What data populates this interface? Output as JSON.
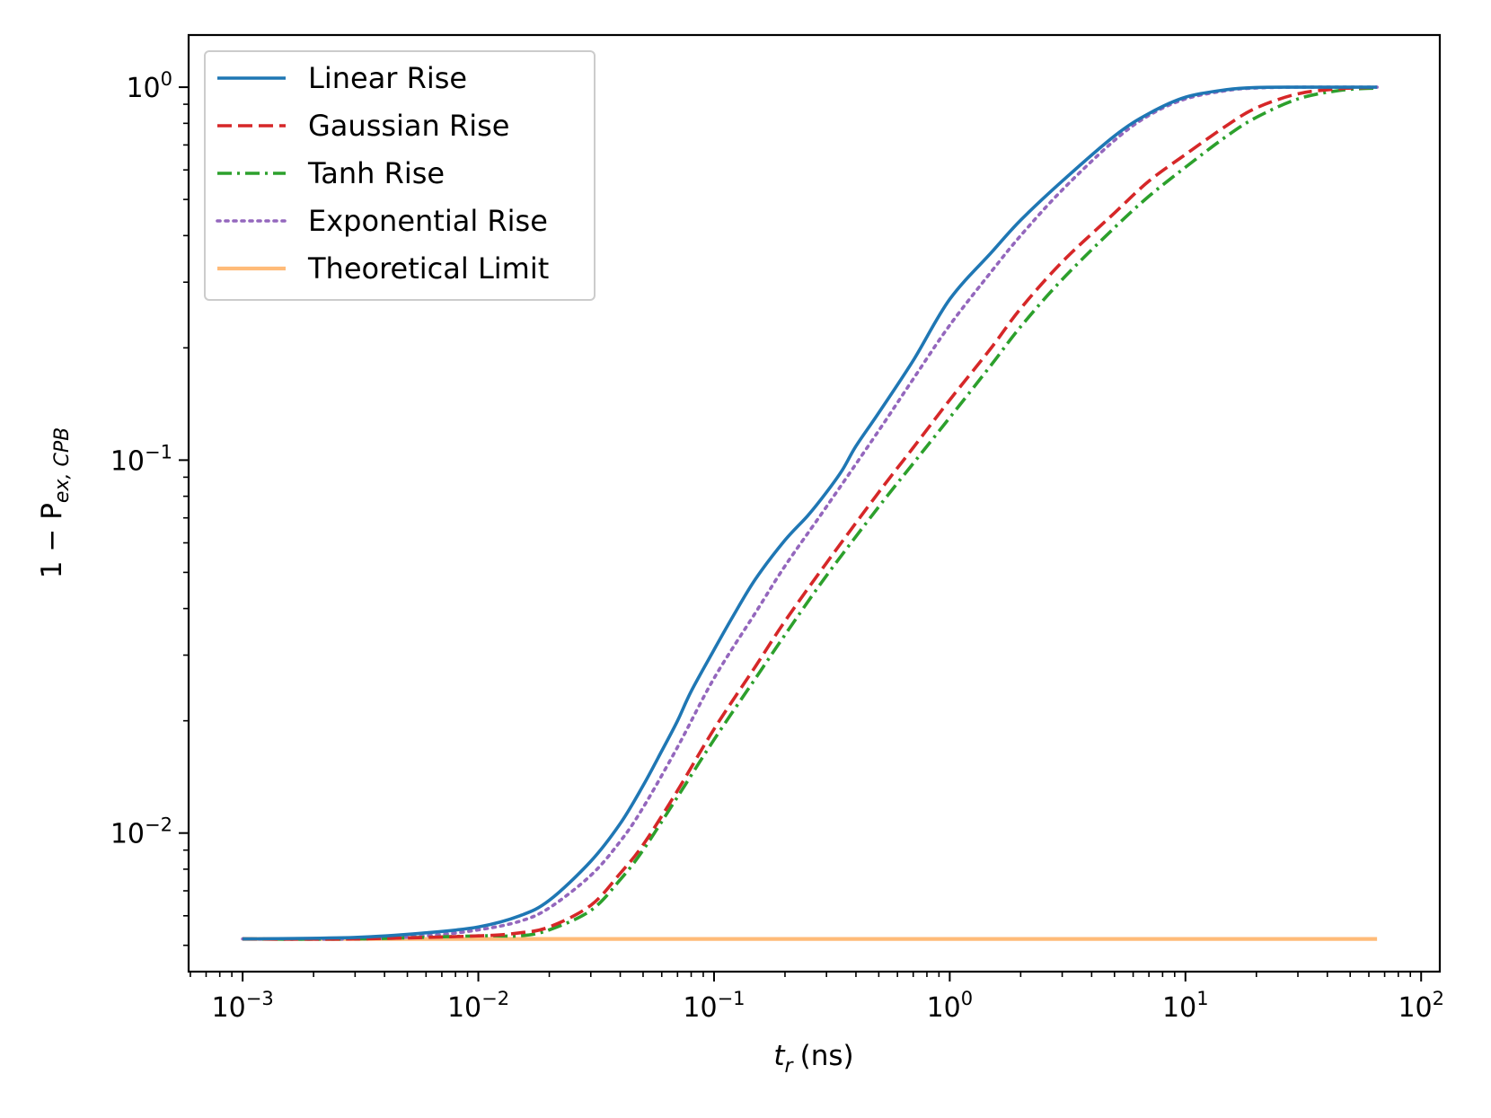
{
  "chart_data": {
    "type": "line",
    "title": "",
    "xlabel_var": "t",
    "xlabel_sub": "r",
    "xlabel_unit": "(ns)",
    "ylabel_prefix": "1 − P",
    "ylabel_sub": "ex, CPB",
    "xscale": "log",
    "yscale": "log",
    "xlim": [
      0.00059,
      120
    ],
    "ylim": [
      0.00425,
      1.38
    ],
    "xticks": [
      {
        "value": 0.001,
        "base": "10",
        "exp": "−3"
      },
      {
        "value": 0.01,
        "base": "10",
        "exp": "−2"
      },
      {
        "value": 0.1,
        "base": "10",
        "exp": "−1"
      },
      {
        "value": 1,
        "base": "10",
        "exp": "0"
      },
      {
        "value": 10,
        "base": "10",
        "exp": "1"
      },
      {
        "value": 100,
        "base": "10",
        "exp": "2"
      }
    ],
    "yticks": [
      {
        "value": 0.01,
        "base": "10",
        "exp": "−2"
      },
      {
        "value": 0.1,
        "base": "10",
        "exp": "−1"
      },
      {
        "value": 1,
        "base": "10",
        "exp": "0"
      }
    ],
    "legend_position": "upper-left",
    "series": [
      {
        "name": "Linear Rise",
        "color": "#1f77b4",
        "style": "solid",
        "points": [
          [
            0.001,
            0.0052
          ],
          [
            0.003,
            0.00525
          ],
          [
            0.006,
            0.0054
          ],
          [
            0.01,
            0.0056
          ],
          [
            0.015,
            0.006
          ],
          [
            0.02,
            0.0066
          ],
          [
            0.03,
            0.0084
          ],
          [
            0.04,
            0.0106
          ],
          [
            0.05,
            0.0134
          ],
          [
            0.06,
            0.0166
          ],
          [
            0.07,
            0.02
          ],
          [
            0.08,
            0.024
          ],
          [
            0.1,
            0.031
          ],
          [
            0.12,
            0.038
          ],
          [
            0.15,
            0.048
          ],
          [
            0.2,
            0.061
          ],
          [
            0.25,
            0.071
          ],
          [
            0.3,
            0.082
          ],
          [
            0.35,
            0.094
          ],
          [
            0.4,
            0.109
          ],
          [
            0.5,
            0.134
          ],
          [
            0.7,
            0.185
          ],
          [
            1.0,
            0.27
          ],
          [
            1.5,
            0.36
          ],
          [
            2.0,
            0.44
          ],
          [
            3.0,
            0.56
          ],
          [
            5.0,
            0.74
          ],
          [
            7.0,
            0.85
          ],
          [
            10.0,
            0.94
          ],
          [
            15.0,
            0.985
          ],
          [
            20.0,
            0.998
          ],
          [
            30.0,
            1.0
          ],
          [
            65.0,
            1.0
          ]
        ]
      },
      {
        "name": "Gaussian Rise",
        "color": "#d62728",
        "style": "dashed",
        "points": [
          [
            0.001,
            0.0052
          ],
          [
            0.003,
            0.0052
          ],
          [
            0.01,
            0.0053
          ],
          [
            0.015,
            0.0054
          ],
          [
            0.02,
            0.0056
          ],
          [
            0.03,
            0.0064
          ],
          [
            0.04,
            0.0078
          ],
          [
            0.05,
            0.0093
          ],
          [
            0.07,
            0.013
          ],
          [
            0.1,
            0.019
          ],
          [
            0.15,
            0.028
          ],
          [
            0.2,
            0.037
          ],
          [
            0.3,
            0.053
          ],
          [
            0.5,
            0.082
          ],
          [
            0.7,
            0.108
          ],
          [
            1.0,
            0.145
          ],
          [
            1.5,
            0.2
          ],
          [
            2.0,
            0.255
          ],
          [
            3.0,
            0.34
          ],
          [
            5.0,
            0.46
          ],
          [
            7.0,
            0.56
          ],
          [
            10.0,
            0.66
          ],
          [
            15.0,
            0.79
          ],
          [
            20.0,
            0.88
          ],
          [
            30.0,
            0.96
          ],
          [
            45.0,
            0.99
          ],
          [
            65.0,
            1.0
          ]
        ]
      },
      {
        "name": "Tanh Rise",
        "color": "#2ca02c",
        "style": "dashdot",
        "points": [
          [
            0.001,
            0.0052
          ],
          [
            0.003,
            0.0052
          ],
          [
            0.01,
            0.0053
          ],
          [
            0.015,
            0.0053
          ],
          [
            0.02,
            0.0055
          ],
          [
            0.03,
            0.0062
          ],
          [
            0.04,
            0.0075
          ],
          [
            0.05,
            0.009
          ],
          [
            0.07,
            0.0125
          ],
          [
            0.1,
            0.0178
          ],
          [
            0.15,
            0.026
          ],
          [
            0.2,
            0.034
          ],
          [
            0.3,
            0.049
          ],
          [
            0.5,
            0.075
          ],
          [
            0.7,
            0.098
          ],
          [
            1.0,
            0.13
          ],
          [
            1.5,
            0.18
          ],
          [
            2.0,
            0.228
          ],
          [
            3.0,
            0.305
          ],
          [
            5.0,
            0.42
          ],
          [
            7.0,
            0.51
          ],
          [
            10.0,
            0.61
          ],
          [
            15.0,
            0.74
          ],
          [
            20.0,
            0.83
          ],
          [
            30.0,
            0.93
          ],
          [
            45.0,
            0.98
          ],
          [
            65.0,
            0.995
          ]
        ]
      },
      {
        "name": "Exponential Rise",
        "color": "#9467bd",
        "style": "dotted",
        "points": [
          [
            0.001,
            0.0052
          ],
          [
            0.003,
            0.0052
          ],
          [
            0.006,
            0.0053
          ],
          [
            0.01,
            0.0055
          ],
          [
            0.015,
            0.0058
          ],
          [
            0.02,
            0.0063
          ],
          [
            0.03,
            0.0077
          ],
          [
            0.04,
            0.0095
          ],
          [
            0.05,
            0.0117
          ],
          [
            0.07,
            0.017
          ],
          [
            0.1,
            0.026
          ],
          [
            0.15,
            0.039
          ],
          [
            0.2,
            0.052
          ],
          [
            0.3,
            0.075
          ],
          [
            0.5,
            0.12
          ],
          [
            0.7,
            0.165
          ],
          [
            1.0,
            0.23
          ],
          [
            1.5,
            0.32
          ],
          [
            2.0,
            0.4
          ],
          [
            3.0,
            0.53
          ],
          [
            5.0,
            0.72
          ],
          [
            7.0,
            0.84
          ],
          [
            10.0,
            0.93
          ],
          [
            15.0,
            0.98
          ],
          [
            20.0,
            0.995
          ],
          [
            30.0,
            1.0
          ],
          [
            65.0,
            1.0
          ]
        ]
      },
      {
        "name": "Theoretical Limit",
        "color": "#ffbb78",
        "style": "solid",
        "points": [
          [
            0.001,
            0.0052
          ],
          [
            65.0,
            0.0052
          ]
        ]
      }
    ]
  }
}
